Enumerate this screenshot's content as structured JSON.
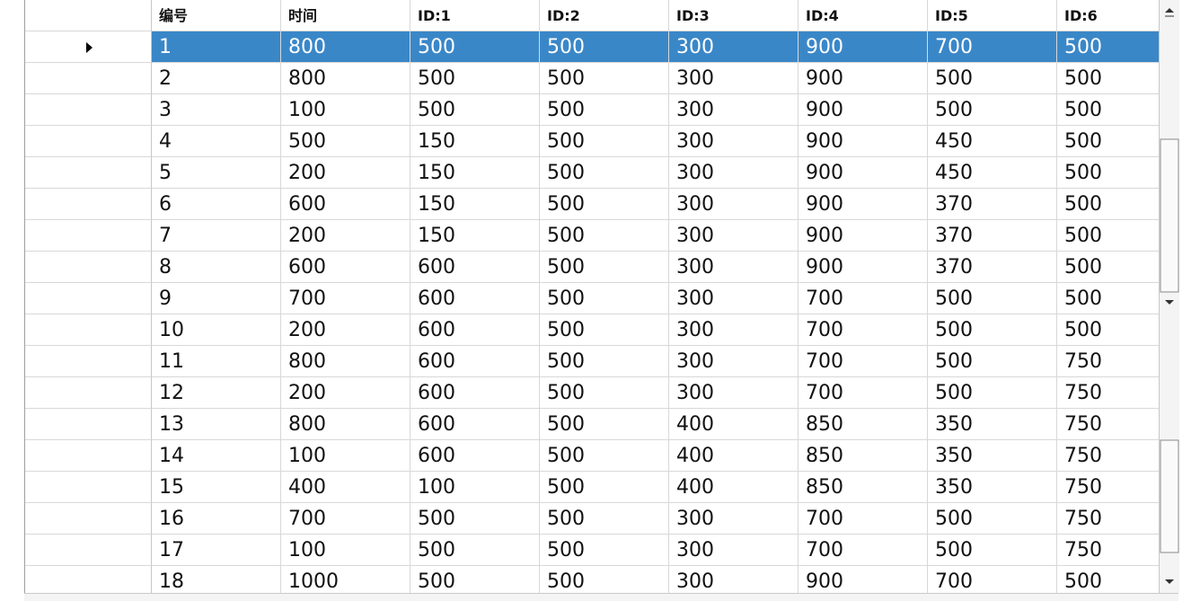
{
  "table": {
    "header": [
      "编号",
      "时间",
      "ID:1",
      "ID:2",
      "ID:3",
      "ID:4",
      "ID:5",
      "ID:6"
    ],
    "rows": [
      [
        1,
        800,
        500,
        500,
        300,
        900,
        700,
        500
      ],
      [
        2,
        800,
        500,
        500,
        300,
        900,
        500,
        500
      ],
      [
        3,
        100,
        500,
        500,
        300,
        900,
        500,
        500
      ],
      [
        4,
        500,
        150,
        500,
        300,
        900,
        450,
        500
      ],
      [
        5,
        200,
        150,
        500,
        300,
        900,
        450,
        500
      ],
      [
        6,
        600,
        150,
        500,
        300,
        900,
        370,
        500
      ],
      [
        7,
        200,
        150,
        500,
        300,
        900,
        370,
        500
      ],
      [
        8,
        600,
        600,
        500,
        300,
        900,
        370,
        500
      ],
      [
        9,
        700,
        600,
        500,
        300,
        700,
        500,
        500
      ],
      [
        10,
        200,
        600,
        500,
        300,
        700,
        500,
        500
      ],
      [
        11,
        800,
        600,
        500,
        300,
        700,
        500,
        750
      ],
      [
        12,
        200,
        600,
        500,
        300,
        700,
        500,
        750
      ],
      [
        13,
        800,
        600,
        500,
        400,
        850,
        350,
        750
      ],
      [
        14,
        100,
        600,
        500,
        400,
        850,
        350,
        750
      ],
      [
        15,
        400,
        100,
        500,
        400,
        850,
        350,
        750
      ],
      [
        16,
        700,
        500,
        500,
        300,
        700,
        500,
        750
      ],
      [
        17,
        100,
        500,
        500,
        300,
        700,
        500,
        750
      ],
      [
        18,
        1000,
        500,
        500,
        300,
        900,
        700,
        500
      ]
    ]
  }
}
